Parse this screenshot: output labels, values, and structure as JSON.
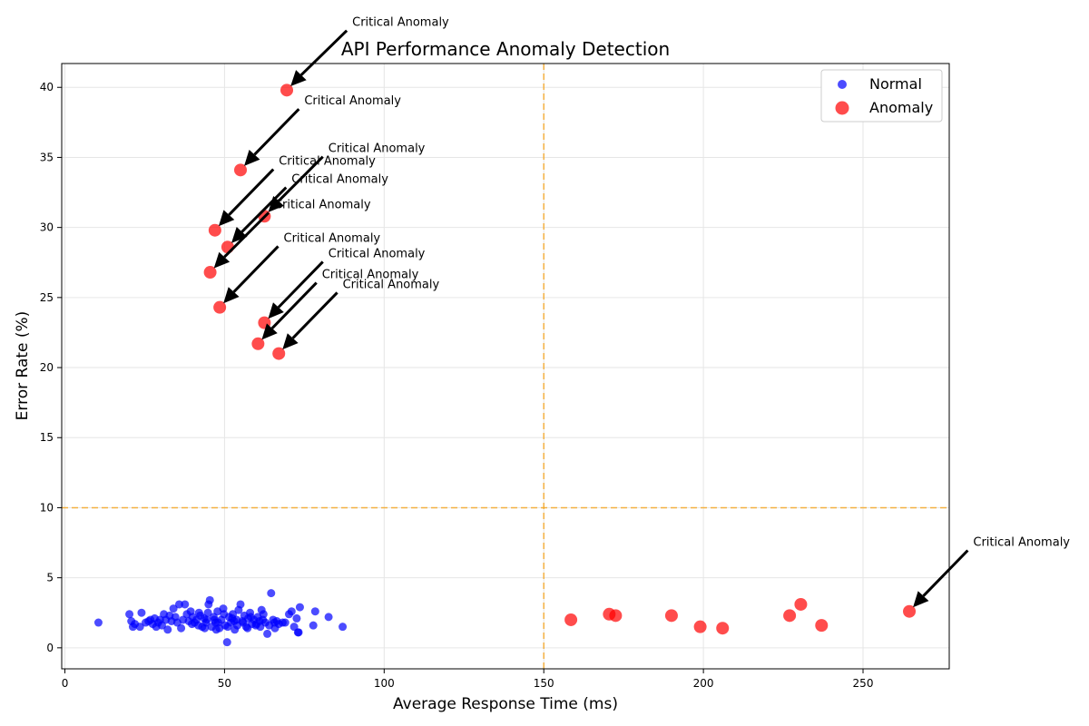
{
  "chart_data": {
    "type": "scatter",
    "title": "API Performance Anomaly Detection",
    "xlabel": "Average Response Time (ms)",
    "ylabel": "Error Rate (%)",
    "xlim": [
      -1,
      277
    ],
    "ylim": [
      -1.5,
      41.7
    ],
    "xticks": [
      0,
      50,
      100,
      150,
      200,
      250
    ],
    "yticks": [
      0,
      5,
      10,
      15,
      20,
      25,
      30,
      35,
      40
    ],
    "grid": true,
    "legend_position": "top-right",
    "thresholds": {
      "x": 150,
      "y": 10,
      "color": "#f5a623"
    },
    "colors": {
      "normal": "#0000ff",
      "anomaly": "#ff0000"
    },
    "series": [
      {
        "name": "Normal",
        "points": [
          [
            10.5,
            1.8
          ],
          [
            20.2,
            2.4
          ],
          [
            20.8,
            1.9
          ],
          [
            21.3,
            1.5
          ],
          [
            21.9,
            1.7
          ],
          [
            23.5,
            1.5
          ],
          [
            24.0,
            2.5
          ],
          [
            25.3,
            1.8
          ],
          [
            26.2,
            1.9
          ],
          [
            26.8,
            2.0
          ],
          [
            27.5,
            1.7
          ],
          [
            28.1,
            2.1
          ],
          [
            28.6,
            1.5
          ],
          [
            29.2,
            1.8
          ],
          [
            29.8,
            2.0
          ],
          [
            30.4,
            1.6
          ],
          [
            31.0,
            2.4
          ],
          [
            31.6,
            2.0
          ],
          [
            32.2,
            1.3
          ],
          [
            32.8,
            2.3
          ],
          [
            33.4,
            1.9
          ],
          [
            34.0,
            2.8
          ],
          [
            34.6,
            2.2
          ],
          [
            35.2,
            1.8
          ],
          [
            35.8,
            3.1
          ],
          [
            36.4,
            1.4
          ],
          [
            37.0,
            2.0
          ],
          [
            37.6,
            3.1
          ],
          [
            38.2,
            2.4
          ],
          [
            38.8,
            1.9
          ],
          [
            39.4,
            2.6
          ],
          [
            40.0,
            2.2
          ],
          [
            40.6,
            1.8
          ],
          [
            41.2,
            2.0
          ],
          [
            41.8,
            1.6
          ],
          [
            42.4,
            2.3
          ],
          [
            43.0,
            1.5
          ],
          [
            43.6,
            2.1
          ],
          [
            44.2,
            1.8
          ],
          [
            44.8,
            2.5
          ],
          [
            45.4,
            3.4
          ],
          [
            45.0,
            3.1
          ],
          [
            46.0,
            1.5
          ],
          [
            46.6,
            2.2
          ],
          [
            47.2,
            1.8
          ],
          [
            47.8,
            2.6
          ],
          [
            48.4,
            1.4
          ],
          [
            49.0,
            2.0
          ],
          [
            49.6,
            2.8
          ],
          [
            50.2,
            1.6
          ],
          [
            50.8,
            0.4
          ],
          [
            51.4,
            2.2
          ],
          [
            52.0,
            1.8
          ],
          [
            52.6,
            2.4
          ],
          [
            53.2,
            1.3
          ],
          [
            53.8,
            2.0
          ],
          [
            54.4,
            2.7
          ],
          [
            55.0,
            3.1
          ],
          [
            55.6,
            1.9
          ],
          [
            56.2,
            2.3
          ],
          [
            56.8,
            1.5
          ],
          [
            57.4,
            2.1
          ],
          [
            58.0,
            2.5
          ],
          [
            58.6,
            1.7
          ],
          [
            59.2,
            2.0
          ],
          [
            59.8,
            1.6
          ],
          [
            60.4,
            2.2
          ],
          [
            61.0,
            1.9
          ],
          [
            61.6,
            2.7
          ],
          [
            62.2,
            2.4
          ],
          [
            62.8,
            1.8
          ],
          [
            63.4,
            1.0
          ],
          [
            64.0,
            1.6
          ],
          [
            64.6,
            3.9
          ],
          [
            65.2,
            2.0
          ],
          [
            65.8,
            1.4
          ],
          [
            66.4,
            1.9
          ],
          [
            67.0,
            1.7
          ],
          [
            69.0,
            1.8
          ],
          [
            70.2,
            2.4
          ],
          [
            71.0,
            2.6
          ],
          [
            71.8,
            1.5
          ],
          [
            72.6,
            2.1
          ],
          [
            73.0,
            1.1
          ],
          [
            73.2,
            1.1
          ],
          [
            73.6,
            2.9
          ],
          [
            77.8,
            1.6
          ],
          [
            78.4,
            2.6
          ],
          [
            82.6,
            2.2
          ],
          [
            87.0,
            1.5
          ],
          [
            43.8,
            1.4
          ],
          [
            46.8,
            2.0
          ],
          [
            48.0,
            1.8
          ],
          [
            51.0,
            1.5
          ],
          [
            52.4,
            2.1
          ],
          [
            54.0,
            1.6
          ],
          [
            55.8,
            1.8
          ],
          [
            57.2,
            1.4
          ],
          [
            60.0,
            1.7
          ],
          [
            62.0,
            2.0
          ],
          [
            44.4,
            2.0
          ],
          [
            47.4,
            1.3
          ],
          [
            49.8,
            2.4
          ],
          [
            53.0,
            1.9
          ],
          [
            58.2,
            2.2
          ],
          [
            61.2,
            1.5
          ],
          [
            65.6,
            1.8
          ],
          [
            68.2,
            1.8
          ],
          [
            39.8,
            1.7
          ],
          [
            42.0,
            2.5
          ]
        ]
      },
      {
        "name": "Anomaly",
        "points": [
          [
            69.5,
            39.8
          ],
          [
            55.0,
            34.1
          ],
          [
            47.0,
            29.8
          ],
          [
            62.5,
            30.8
          ],
          [
            51.0,
            28.6
          ],
          [
            45.5,
            26.8
          ],
          [
            48.5,
            24.3
          ],
          [
            62.5,
            23.2
          ],
          [
            60.5,
            21.7
          ],
          [
            67.0,
            21.0
          ],
          [
            158.5,
            2.0
          ],
          [
            170.5,
            2.4
          ],
          [
            172.5,
            2.3
          ],
          [
            190.0,
            2.3
          ],
          [
            199.0,
            1.5
          ],
          [
            206.0,
            1.4
          ],
          [
            227.0,
            2.3
          ],
          [
            230.5,
            3.1
          ],
          [
            237.0,
            1.6
          ],
          [
            264.5,
            2.6
          ]
        ]
      }
    ],
    "annotation_text": "Critical Anomaly",
    "annotations": [
      {
        "point": [
          69.5,
          39.8
        ],
        "text_at": [
          90.0,
          44.7
        ]
      },
      {
        "point": [
          55.0,
          34.1
        ],
        "text_at": [
          75.0,
          39.1
        ]
      },
      {
        "point": [
          47.0,
          29.8
        ],
        "text_at": [
          67.0,
          34.8
        ]
      },
      {
        "point": [
          62.5,
          30.8
        ],
        "text_at": [
          82.5,
          35.7
        ]
      },
      {
        "point": [
          51.0,
          28.6
        ],
        "text_at": [
          71.0,
          33.5
        ]
      },
      {
        "point": [
          45.5,
          26.8
        ],
        "text_at": [
          65.5,
          31.7
        ]
      },
      {
        "point": [
          48.5,
          24.3
        ],
        "text_at": [
          68.5,
          29.3
        ]
      },
      {
        "point": [
          62.5,
          23.2
        ],
        "text_at": [
          82.5,
          28.2
        ]
      },
      {
        "point": [
          60.5,
          21.7
        ],
        "text_at": [
          80.5,
          26.7
        ]
      },
      {
        "point": [
          67.0,
          21.0
        ],
        "text_at": [
          87.0,
          26.0
        ]
      },
      {
        "point": [
          264.5,
          2.6
        ],
        "text_at": [
          284.5,
          7.6
        ]
      }
    ]
  }
}
